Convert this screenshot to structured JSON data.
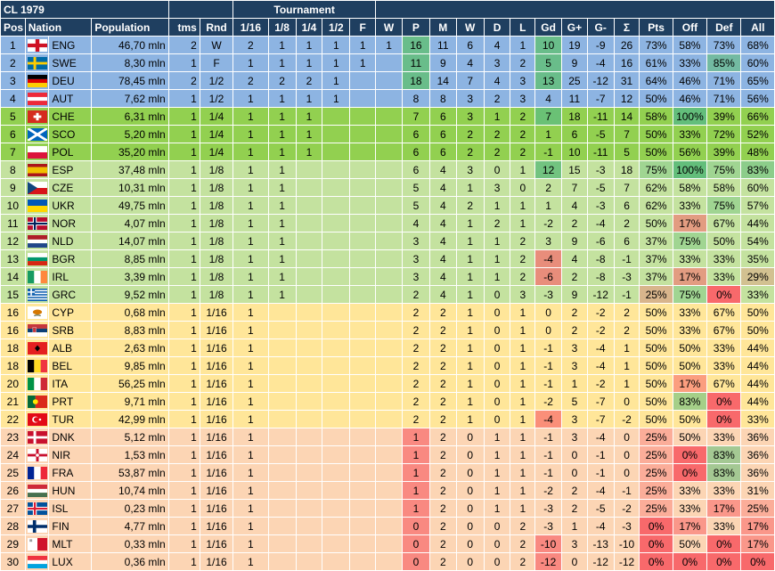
{
  "title": "CL 1979",
  "tournament_label": "Tournament",
  "columns": [
    "Pos",
    "Nation",
    "Population",
    "tms",
    "Rnd",
    "1/16",
    "1/8",
    "1/4",
    "1/2",
    "F",
    "W",
    "P",
    "M",
    "W",
    "D",
    "L",
    "Gd",
    "G+",
    "G-",
    "Σ",
    "Pts",
    "Off",
    "Def",
    "All"
  ],
  "colors": {
    "header_bg": "#1f3f60",
    "tier_blue": "#8db4e2",
    "tier_green": "#92d050",
    "tier_lightgreen": "#c4e29f",
    "tier_yellow": "#ffe699",
    "tier_orange": "#fcd5b4",
    "good": "#63be7b",
    "bad": "#f8696b"
  },
  "rows": [
    {
      "pos": "1",
      "code": "ENG",
      "pop": "46,70 mln",
      "tms": "2",
      "rnd": "W",
      "r16": "2",
      "r8": "1",
      "r4": "1",
      "r2": "1",
      "f": "1",
      "w": "1",
      "p": "16",
      "m": "11",
      "win": "6",
      "d": "4",
      "l": "1",
      "gd": "10",
      "gp": "19",
      "gm": "-9",
      "sum": "26",
      "pts": "73%",
      "off": "58%",
      "def": "73%",
      "all": "68%"
    },
    {
      "pos": "2",
      "code": "SWE",
      "pop": "8,30 mln",
      "tms": "1",
      "rnd": "F",
      "r16": "1",
      "r8": "1",
      "r4": "1",
      "r2": "1",
      "f": "1",
      "w": "",
      "p": "11",
      "m": "9",
      "win": "4",
      "d": "3",
      "l": "2",
      "gd": "5",
      "gp": "9",
      "gm": "-4",
      "sum": "16",
      "pts": "61%",
      "off": "33%",
      "def": "85%",
      "all": "60%"
    },
    {
      "pos": "3",
      "code": "DEU",
      "pop": "78,45 mln",
      "tms": "2",
      "rnd": "1/2",
      "r16": "2",
      "r8": "2",
      "r4": "2",
      "r2": "1",
      "f": "",
      "w": "",
      "p": "18",
      "m": "14",
      "win": "7",
      "d": "4",
      "l": "3",
      "gd": "13",
      "gp": "25",
      "gm": "-12",
      "sum": "31",
      "pts": "64%",
      "off": "46%",
      "def": "71%",
      "all": "65%"
    },
    {
      "pos": "4",
      "code": "AUT",
      "pop": "7,62 mln",
      "tms": "1",
      "rnd": "1/2",
      "r16": "1",
      "r8": "1",
      "r4": "1",
      "r2": "1",
      "f": "",
      "w": "",
      "p": "8",
      "m": "8",
      "win": "3",
      "d": "2",
      "l": "3",
      "gd": "4",
      "gp": "11",
      "gm": "-7",
      "sum": "12",
      "pts": "50%",
      "off": "46%",
      "def": "71%",
      "all": "56%"
    },
    {
      "pos": "5",
      "code": "CHE",
      "pop": "6,31 mln",
      "tms": "1",
      "rnd": "1/4",
      "r16": "1",
      "r8": "1",
      "r4": "1",
      "r2": "",
      "f": "",
      "w": "",
      "p": "7",
      "m": "6",
      "win": "3",
      "d": "1",
      "l": "2",
      "gd": "7",
      "gp": "18",
      "gm": "-11",
      "sum": "14",
      "pts": "58%",
      "off": "100%",
      "def": "39%",
      "all": "66%"
    },
    {
      "pos": "6",
      "code": "SCO",
      "pop": "5,20 mln",
      "tms": "1",
      "rnd": "1/4",
      "r16": "1",
      "r8": "1",
      "r4": "1",
      "r2": "",
      "f": "",
      "w": "",
      "p": "6",
      "m": "6",
      "win": "2",
      "d": "2",
      "l": "2",
      "gd": "1",
      "gp": "6",
      "gm": "-5",
      "sum": "7",
      "pts": "50%",
      "off": "33%",
      "def": "72%",
      "all": "52%"
    },
    {
      "pos": "7",
      "code": "POL",
      "pop": "35,20 mln",
      "tms": "1",
      "rnd": "1/4",
      "r16": "1",
      "r8": "1",
      "r4": "1",
      "r2": "",
      "f": "",
      "w": "",
      "p": "6",
      "m": "6",
      "win": "2",
      "d": "2",
      "l": "2",
      "gd": "-1",
      "gp": "10",
      "gm": "-11",
      "sum": "5",
      "pts": "50%",
      "off": "56%",
      "def": "39%",
      "all": "48%"
    },
    {
      "pos": "8",
      "code": "ESP",
      "pop": "37,48 mln",
      "tms": "1",
      "rnd": "1/8",
      "r16": "1",
      "r8": "1",
      "r4": "",
      "r2": "",
      "f": "",
      "w": "",
      "p": "6",
      "m": "4",
      "win": "3",
      "d": "0",
      "l": "1",
      "gd": "12",
      "gp": "15",
      "gm": "-3",
      "sum": "18",
      "pts": "75%",
      "off": "100%",
      "def": "75%",
      "all": "83%"
    },
    {
      "pos": "9",
      "code": "CZE",
      "pop": "10,31 mln",
      "tms": "1",
      "rnd": "1/8",
      "r16": "1",
      "r8": "1",
      "r4": "",
      "r2": "",
      "f": "",
      "w": "",
      "p": "5",
      "m": "4",
      "win": "1",
      "d": "3",
      "l": "0",
      "gd": "2",
      "gp": "7",
      "gm": "-5",
      "sum": "7",
      "pts": "62%",
      "off": "58%",
      "def": "58%",
      "all": "60%"
    },
    {
      "pos": "10",
      "code": "UKR",
      "pop": "49,75 mln",
      "tms": "1",
      "rnd": "1/8",
      "r16": "1",
      "r8": "1",
      "r4": "",
      "r2": "",
      "f": "",
      "w": "",
      "p": "5",
      "m": "4",
      "win": "2",
      "d": "1",
      "l": "1",
      "gd": "1",
      "gp": "4",
      "gm": "-3",
      "sum": "6",
      "pts": "62%",
      "off": "33%",
      "def": "75%",
      "all": "57%"
    },
    {
      "pos": "11",
      "code": "NOR",
      "pop": "4,07 mln",
      "tms": "1",
      "rnd": "1/8",
      "r16": "1",
      "r8": "1",
      "r4": "",
      "r2": "",
      "f": "",
      "w": "",
      "p": "4",
      "m": "4",
      "win": "1",
      "d": "2",
      "l": "1",
      "gd": "-2",
      "gp": "2",
      "gm": "-4",
      "sum": "2",
      "pts": "50%",
      "off": "17%",
      "def": "67%",
      "all": "44%"
    },
    {
      "pos": "12",
      "code": "NLD",
      "pop": "14,07 mln",
      "tms": "1",
      "rnd": "1/8",
      "r16": "1",
      "r8": "1",
      "r4": "",
      "r2": "",
      "f": "",
      "w": "",
      "p": "3",
      "m": "4",
      "win": "1",
      "d": "1",
      "l": "2",
      "gd": "3",
      "gp": "9",
      "gm": "-6",
      "sum": "6",
      "pts": "37%",
      "off": "75%",
      "def": "50%",
      "all": "54%"
    },
    {
      "pos": "13",
      "code": "BGR",
      "pop": "8,85 mln",
      "tms": "1",
      "rnd": "1/8",
      "r16": "1",
      "r8": "1",
      "r4": "",
      "r2": "",
      "f": "",
      "w": "",
      "p": "3",
      "m": "4",
      "win": "1",
      "d": "1",
      "l": "2",
      "gd": "-4",
      "gp": "4",
      "gm": "-8",
      "sum": "-1",
      "pts": "37%",
      "off": "33%",
      "def": "33%",
      "all": "35%"
    },
    {
      "pos": "14",
      "code": "IRL",
      "pop": "3,39 mln",
      "tms": "1",
      "rnd": "1/8",
      "r16": "1",
      "r8": "1",
      "r4": "",
      "r2": "",
      "f": "",
      "w": "",
      "p": "3",
      "m": "4",
      "win": "1",
      "d": "1",
      "l": "2",
      "gd": "-6",
      "gp": "2",
      "gm": "-8",
      "sum": "-3",
      "pts": "37%",
      "off": "17%",
      "def": "33%",
      "all": "29%"
    },
    {
      "pos": "15",
      "code": "GRC",
      "pop": "9,52 mln",
      "tms": "1",
      "rnd": "1/8",
      "r16": "1",
      "r8": "1",
      "r4": "",
      "r2": "",
      "f": "",
      "w": "",
      "p": "2",
      "m": "4",
      "win": "1",
      "d": "0",
      "l": "3",
      "gd": "-3",
      "gp": "9",
      "gm": "-12",
      "sum": "-1",
      "pts": "25%",
      "off": "75%",
      "def": "0%",
      "all": "33%"
    },
    {
      "pos": "16",
      "code": "CYP",
      "pop": "0,68 mln",
      "tms": "1",
      "rnd": "1/16",
      "r16": "1",
      "r8": "",
      "r4": "",
      "r2": "",
      "f": "",
      "w": "",
      "p": "2",
      "m": "2",
      "win": "1",
      "d": "0",
      "l": "1",
      "gd": "0",
      "gp": "2",
      "gm": "-2",
      "sum": "2",
      "pts": "50%",
      "off": "33%",
      "def": "67%",
      "all": "50%"
    },
    {
      "pos": "16",
      "code": "SRB",
      "pop": "8,83 mln",
      "tms": "1",
      "rnd": "1/16",
      "r16": "1",
      "r8": "",
      "r4": "",
      "r2": "",
      "f": "",
      "w": "",
      "p": "2",
      "m": "2",
      "win": "1",
      "d": "0",
      "l": "1",
      "gd": "0",
      "gp": "2",
      "gm": "-2",
      "sum": "2",
      "pts": "50%",
      "off": "33%",
      "def": "67%",
      "all": "50%"
    },
    {
      "pos": "18",
      "code": "ALB",
      "pop": "2,63 mln",
      "tms": "1",
      "rnd": "1/16",
      "r16": "1",
      "r8": "",
      "r4": "",
      "r2": "",
      "f": "",
      "w": "",
      "p": "2",
      "m": "2",
      "win": "1",
      "d": "0",
      "l": "1",
      "gd": "-1",
      "gp": "3",
      "gm": "-4",
      "sum": "1",
      "pts": "50%",
      "off": "50%",
      "def": "33%",
      "all": "44%"
    },
    {
      "pos": "18",
      "code": "BEL",
      "pop": "9,85 mln",
      "tms": "1",
      "rnd": "1/16",
      "r16": "1",
      "r8": "",
      "r4": "",
      "r2": "",
      "f": "",
      "w": "",
      "p": "2",
      "m": "2",
      "win": "1",
      "d": "0",
      "l": "1",
      "gd": "-1",
      "gp": "3",
      "gm": "-4",
      "sum": "1",
      "pts": "50%",
      "off": "50%",
      "def": "33%",
      "all": "44%"
    },
    {
      "pos": "20",
      "code": "ITA",
      "pop": "56,25 mln",
      "tms": "1",
      "rnd": "1/16",
      "r16": "1",
      "r8": "",
      "r4": "",
      "r2": "",
      "f": "",
      "w": "",
      "p": "2",
      "m": "2",
      "win": "1",
      "d": "0",
      "l": "1",
      "gd": "-1",
      "gp": "1",
      "gm": "-2",
      "sum": "1",
      "pts": "50%",
      "off": "17%",
      "def": "67%",
      "all": "44%"
    },
    {
      "pos": "21",
      "code": "PRT",
      "pop": "9,71 mln",
      "tms": "1",
      "rnd": "1/16",
      "r16": "1",
      "r8": "",
      "r4": "",
      "r2": "",
      "f": "",
      "w": "",
      "p": "2",
      "m": "2",
      "win": "1",
      "d": "0",
      "l": "1",
      "gd": "-2",
      "gp": "5",
      "gm": "-7",
      "sum": "0",
      "pts": "50%",
      "off": "83%",
      "def": "0%",
      "all": "44%"
    },
    {
      "pos": "22",
      "code": "TUR",
      "pop": "42,99 mln",
      "tms": "1",
      "rnd": "1/16",
      "r16": "1",
      "r8": "",
      "r4": "",
      "r2": "",
      "f": "",
      "w": "",
      "p": "2",
      "m": "2",
      "win": "1",
      "d": "0",
      "l": "1",
      "gd": "-4",
      "gp": "3",
      "gm": "-7",
      "sum": "-2",
      "pts": "50%",
      "off": "50%",
      "def": "0%",
      "all": "33%"
    },
    {
      "pos": "23",
      "code": "DNK",
      "pop": "5,12 mln",
      "tms": "1",
      "rnd": "1/16",
      "r16": "1",
      "r8": "",
      "r4": "",
      "r2": "",
      "f": "",
      "w": "",
      "p": "1",
      "m": "2",
      "win": "0",
      "d": "1",
      "l": "1",
      "gd": "-1",
      "gp": "3",
      "gm": "-4",
      "sum": "0",
      "pts": "25%",
      "off": "50%",
      "def": "33%",
      "all": "36%"
    },
    {
      "pos": "24",
      "code": "NIR",
      "pop": "1,53 mln",
      "tms": "1",
      "rnd": "1/16",
      "r16": "1",
      "r8": "",
      "r4": "",
      "r2": "",
      "f": "",
      "w": "",
      "p": "1",
      "m": "2",
      "win": "0",
      "d": "1",
      "l": "1",
      "gd": "-1",
      "gp": "0",
      "gm": "-1",
      "sum": "0",
      "pts": "25%",
      "off": "0%",
      "def": "83%",
      "all": "36%"
    },
    {
      "pos": "25",
      "code": "FRA",
      "pop": "53,87 mln",
      "tms": "1",
      "rnd": "1/16",
      "r16": "1",
      "r8": "",
      "r4": "",
      "r2": "",
      "f": "",
      "w": "",
      "p": "1",
      "m": "2",
      "win": "0",
      "d": "1",
      "l": "1",
      "gd": "-1",
      "gp": "0",
      "gm": "-1",
      "sum": "0",
      "pts": "25%",
      "off": "0%",
      "def": "83%",
      "all": "36%"
    },
    {
      "pos": "26",
      "code": "HUN",
      "pop": "10,74 mln",
      "tms": "1",
      "rnd": "1/16",
      "r16": "1",
      "r8": "",
      "r4": "",
      "r2": "",
      "f": "",
      "w": "",
      "p": "1",
      "m": "2",
      "win": "0",
      "d": "1",
      "l": "1",
      "gd": "-2",
      "gp": "2",
      "gm": "-4",
      "sum": "-1",
      "pts": "25%",
      "off": "33%",
      "def": "33%",
      "all": "31%"
    },
    {
      "pos": "27",
      "code": "ISL",
      "pop": "0,23 mln",
      "tms": "1",
      "rnd": "1/16",
      "r16": "1",
      "r8": "",
      "r4": "",
      "r2": "",
      "f": "",
      "w": "",
      "p": "1",
      "m": "2",
      "win": "0",
      "d": "1",
      "l": "1",
      "gd": "-3",
      "gp": "2",
      "gm": "-5",
      "sum": "-2",
      "pts": "25%",
      "off": "33%",
      "def": "17%",
      "all": "25%"
    },
    {
      "pos": "28",
      "code": "FIN",
      "pop": "4,77 mln",
      "tms": "1",
      "rnd": "1/16",
      "r16": "1",
      "r8": "",
      "r4": "",
      "r2": "",
      "f": "",
      "w": "",
      "p": "0",
      "m": "2",
      "win": "0",
      "d": "0",
      "l": "2",
      "gd": "-3",
      "gp": "1",
      "gm": "-4",
      "sum": "-3",
      "pts": "0%",
      "off": "17%",
      "def": "33%",
      "all": "17%"
    },
    {
      "pos": "29",
      "code": "MLT",
      "pop": "0,33 mln",
      "tms": "1",
      "rnd": "1/16",
      "r16": "1",
      "r8": "",
      "r4": "",
      "r2": "",
      "f": "",
      "w": "",
      "p": "0",
      "m": "2",
      "win": "0",
      "d": "0",
      "l": "2",
      "gd": "-10",
      "gp": "3",
      "gm": "-13",
      "sum": "-10",
      "pts": "0%",
      "off": "50%",
      "def": "0%",
      "all": "17%"
    },
    {
      "pos": "30",
      "code": "LUX",
      "pop": "0,36 mln",
      "tms": "1",
      "rnd": "1/16",
      "r16": "1",
      "r8": "",
      "r4": "",
      "r2": "",
      "f": "",
      "w": "",
      "p": "0",
      "m": "2",
      "win": "0",
      "d": "0",
      "l": "2",
      "gd": "-12",
      "gp": "0",
      "gm": "-12",
      "sum": "-12",
      "pts": "0%",
      "off": "0%",
      "def": "0%",
      "all": "0%"
    }
  ]
}
